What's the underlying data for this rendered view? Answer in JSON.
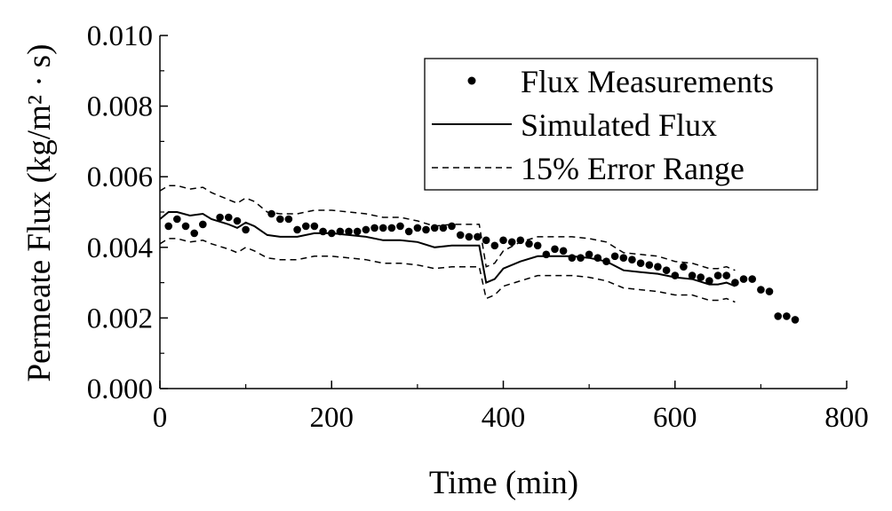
{
  "chart_data": {
    "type": "line",
    "title": "",
    "xlabel": "Time (min)",
    "ylabel": "Permeate Flux (kg/m² · s)",
    "xlim": [
      0,
      800
    ],
    "ylim": [
      0,
      0.01
    ],
    "xticks": [
      "0",
      "200",
      "400",
      "600",
      "800"
    ],
    "yticks": [
      "0.000",
      "0.002",
      "0.004",
      "0.006",
      "0.008",
      "0.010"
    ],
    "xtick_values": [
      0,
      200,
      400,
      600,
      800
    ],
    "ytick_values": [
      0,
      0.002,
      0.004,
      0.006,
      0.008,
      0.01
    ],
    "grid": false,
    "legend_position": "top-right",
    "series": [
      {
        "name": "Flux Measurements",
        "style": "markers",
        "color": "#000000",
        "points": [
          [
            10,
            0.0046
          ],
          [
            20,
            0.0048
          ],
          [
            30,
            0.0046
          ],
          [
            40,
            0.0044
          ],
          [
            50,
            0.00465
          ],
          [
            70,
            0.00485
          ],
          [
            80,
            0.00485
          ],
          [
            90,
            0.00475
          ],
          [
            100,
            0.0045
          ],
          [
            130,
            0.00495
          ],
          [
            140,
            0.0048
          ],
          [
            150,
            0.0048
          ],
          [
            160,
            0.0045
          ],
          [
            170,
            0.0046
          ],
          [
            180,
            0.0046
          ],
          [
            190,
            0.00445
          ],
          [
            200,
            0.0044
          ],
          [
            210,
            0.00445
          ],
          [
            220,
            0.00445
          ],
          [
            230,
            0.00445
          ],
          [
            240,
            0.0045
          ],
          [
            250,
            0.00455
          ],
          [
            260,
            0.00455
          ],
          [
            270,
            0.00455
          ],
          [
            280,
            0.0046
          ],
          [
            290,
            0.00445
          ],
          [
            300,
            0.00455
          ],
          [
            310,
            0.0045
          ],
          [
            320,
            0.00455
          ],
          [
            330,
            0.00455
          ],
          [
            340,
            0.0046
          ],
          [
            350,
            0.00435
          ],
          [
            360,
            0.0043
          ],
          [
            370,
            0.0043
          ],
          [
            380,
            0.0042
          ],
          [
            390,
            0.00405
          ],
          [
            400,
            0.0042
          ],
          [
            410,
            0.00415
          ],
          [
            420,
            0.0042
          ],
          [
            430,
            0.0041
          ],
          [
            440,
            0.00405
          ],
          [
            450,
            0.0038
          ],
          [
            460,
            0.00395
          ],
          [
            470,
            0.0039
          ],
          [
            480,
            0.0037
          ],
          [
            490,
            0.0037
          ],
          [
            500,
            0.0038
          ],
          [
            510,
            0.0037
          ],
          [
            520,
            0.0036
          ],
          [
            530,
            0.00375
          ],
          [
            540,
            0.0037
          ],
          [
            550,
            0.00365
          ],
          [
            560,
            0.00355
          ],
          [
            570,
            0.0035
          ],
          [
            580,
            0.00345
          ],
          [
            590,
            0.00335
          ],
          [
            600,
            0.0032
          ],
          [
            610,
            0.00345
          ],
          [
            620,
            0.0032
          ],
          [
            630,
            0.00315
          ],
          [
            640,
            0.00305
          ],
          [
            650,
            0.0032
          ],
          [
            660,
            0.0032
          ],
          [
            670,
            0.003
          ],
          [
            680,
            0.0031
          ],
          [
            690,
            0.0031
          ],
          [
            700,
            0.0028
          ],
          [
            710,
            0.00275
          ],
          [
            720,
            0.00205
          ],
          [
            730,
            0.00205
          ],
          [
            740,
            0.00195
          ]
        ]
      },
      {
        "name": "Simulated Flux",
        "style": "solid",
        "color": "#000000",
        "points": [
          [
            0,
            0.0048
          ],
          [
            10,
            0.005
          ],
          [
            20,
            0.005
          ],
          [
            35,
            0.0049
          ],
          [
            50,
            0.00495
          ],
          [
            60,
            0.0048
          ],
          [
            80,
            0.00465
          ],
          [
            90,
            0.00455
          ],
          [
            100,
            0.0047
          ],
          [
            110,
            0.0046
          ],
          [
            125,
            0.00435
          ],
          [
            140,
            0.0043
          ],
          [
            160,
            0.0043
          ],
          [
            180,
            0.0044
          ],
          [
            200,
            0.0044
          ],
          [
            220,
            0.00435
          ],
          [
            240,
            0.0043
          ],
          [
            260,
            0.0042
          ],
          [
            280,
            0.0042
          ],
          [
            300,
            0.00415
          ],
          [
            320,
            0.004
          ],
          [
            340,
            0.00405
          ],
          [
            360,
            0.00405
          ],
          [
            372,
            0.00405
          ],
          [
            380,
            0.003
          ],
          [
            390,
            0.0031
          ],
          [
            400,
            0.0034
          ],
          [
            420,
            0.0036
          ],
          [
            440,
            0.00375
          ],
          [
            460,
            0.00375
          ],
          [
            480,
            0.00375
          ],
          [
            500,
            0.0037
          ],
          [
            520,
            0.0036
          ],
          [
            540,
            0.00335
          ],
          [
            560,
            0.0033
          ],
          [
            580,
            0.00325
          ],
          [
            600,
            0.00315
          ],
          [
            620,
            0.0031
          ],
          [
            640,
            0.00295
          ],
          [
            650,
            0.00295
          ],
          [
            660,
            0.003
          ],
          [
            670,
            0.0029
          ]
        ]
      },
      {
        "name": "15% Error Range",
        "style": "dashed",
        "color": "#000000",
        "points": [
          [
            0,
            0.0056
          ],
          [
            10,
            0.00575
          ],
          [
            20,
            0.00575
          ],
          [
            35,
            0.00565
          ],
          [
            50,
            0.0057
          ],
          [
            60,
            0.00555
          ],
          [
            80,
            0.00535
          ],
          [
            90,
            0.00525
          ],
          [
            100,
            0.0054
          ],
          [
            110,
            0.0053
          ],
          [
            125,
            0.005
          ],
          [
            140,
            0.00495
          ],
          [
            160,
            0.00495
          ],
          [
            180,
            0.00505
          ],
          [
            200,
            0.00505
          ],
          [
            220,
            0.005
          ],
          [
            240,
            0.00495
          ],
          [
            260,
            0.00485
          ],
          [
            280,
            0.00485
          ],
          [
            300,
            0.00475
          ],
          [
            320,
            0.0046
          ],
          [
            340,
            0.00465
          ],
          [
            360,
            0.00465
          ],
          [
            372,
            0.00465
          ],
          [
            380,
            0.00345
          ],
          [
            390,
            0.00355
          ],
          [
            400,
            0.0039
          ],
          [
            420,
            0.00415
          ],
          [
            440,
            0.0043
          ],
          [
            460,
            0.0043
          ],
          [
            480,
            0.0043
          ],
          [
            500,
            0.00425
          ],
          [
            520,
            0.00415
          ],
          [
            540,
            0.00385
          ],
          [
            560,
            0.0038
          ],
          [
            580,
            0.00375
          ],
          [
            600,
            0.0036
          ],
          [
            620,
            0.00355
          ],
          [
            640,
            0.0034
          ],
          [
            650,
            0.0034
          ],
          [
            660,
            0.00345
          ],
          [
            670,
            0.00335
          ]
        ],
        "lower_points": [
          [
            0,
            0.0041
          ],
          [
            10,
            0.00425
          ],
          [
            20,
            0.00425
          ],
          [
            35,
            0.00415
          ],
          [
            50,
            0.0042
          ],
          [
            60,
            0.0041
          ],
          [
            80,
            0.00395
          ],
          [
            90,
            0.00385
          ],
          [
            100,
            0.004
          ],
          [
            110,
            0.0039
          ],
          [
            125,
            0.0037
          ],
          [
            140,
            0.00365
          ],
          [
            160,
            0.00365
          ],
          [
            180,
            0.00375
          ],
          [
            200,
            0.00375
          ],
          [
            220,
            0.0037
          ],
          [
            240,
            0.00365
          ],
          [
            260,
            0.00355
          ],
          [
            280,
            0.00355
          ],
          [
            300,
            0.0035
          ],
          [
            320,
            0.0034
          ],
          [
            340,
            0.00345
          ],
          [
            360,
            0.00345
          ],
          [
            372,
            0.00345
          ],
          [
            380,
            0.00255
          ],
          [
            390,
            0.00265
          ],
          [
            400,
            0.0029
          ],
          [
            420,
            0.00305
          ],
          [
            440,
            0.0032
          ],
          [
            460,
            0.0032
          ],
          [
            480,
            0.0032
          ],
          [
            500,
            0.00315
          ],
          [
            520,
            0.00305
          ],
          [
            540,
            0.00285
          ],
          [
            560,
            0.0028
          ],
          [
            580,
            0.00275
          ],
          [
            600,
            0.00265
          ],
          [
            620,
            0.00265
          ],
          [
            640,
            0.0025
          ],
          [
            650,
            0.0025
          ],
          [
            660,
            0.00255
          ],
          [
            670,
            0.00245
          ]
        ]
      }
    ]
  }
}
